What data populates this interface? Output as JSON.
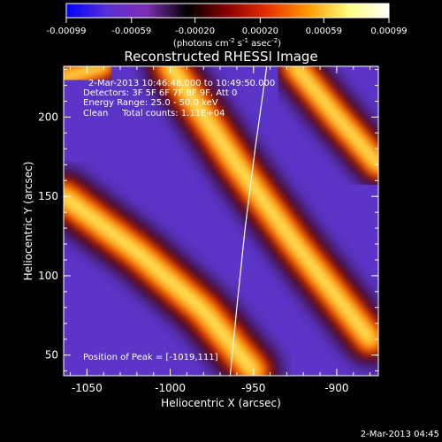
{
  "chart_data": {
    "type": "heatmap",
    "title": "Reconstructed RHESSI Image",
    "xlabel": "Heliocentric X (arcsec)",
    "ylabel": "Heliocentric Y (arcsec)",
    "xlim": [
      -1064,
      -875
    ],
    "ylim": [
      37,
      232
    ],
    "x_ticks": [
      "-1050",
      "-1000",
      "-950",
      "-900"
    ],
    "x_tick_values": [
      -1050,
      -1000,
      -950,
      -900
    ],
    "y_ticks": [
      "50",
      "100",
      "150",
      "200"
    ],
    "y_tick_values": [
      50,
      100,
      150,
      200
    ],
    "colorbar": {
      "min": -0.00099,
      "max": 0.00099,
      "ticks": [
        "-0.00099",
        "-0.00059",
        "-0.00020",
        "0.00020",
        "0.00059",
        "0.00099"
      ],
      "tick_values": [
        -0.00099,
        -0.00059,
        -0.0002,
        0.0002,
        0.00059,
        0.00099
      ],
      "unit_label": "(photons cm",
      "unit_sup1": "-2",
      "unit_mid": " s",
      "unit_sup2": "-1",
      "unit_end": " asec",
      "unit_sup3": "-2",
      "unit_close": ")",
      "colors": [
        "#0000ff",
        "#5a2fd6",
        "#7d2eb0",
        "#000000",
        "#8a0000",
        "#e83200",
        "#ff9a00",
        "#ffff80",
        "#ffffff"
      ]
    },
    "info_lines": [
      "2-Mar-2013 10:46:48.000 to 10:49:50.000",
      "Detectors: 3F 5F 6F 7F 8F 9F, Att 0",
      "Energy Range: 25.0 - 50.0 keV",
      "Clean     Total counts: 1.11E+04"
    ],
    "peak_label": "Position of Peak = [-1019,111]",
    "limb_points": [
      [
        -964,
        37
      ],
      [
        -960,
        80
      ],
      [
        -955,
        130
      ],
      [
        -949,
        180
      ],
      [
        -942,
        232
      ]
    ],
    "stripes": [
      {
        "kind": "bright",
        "points": [
          [
            -1064,
            150
          ],
          [
            -1020,
            115
          ],
          [
            -980,
            78
          ],
          [
            -950,
            40
          ]
        ],
        "intensity": 1.0
      },
      {
        "kind": "bright",
        "points": [
          [
            -1000,
            232
          ],
          [
            -960,
            170
          ],
          [
            -925,
            120
          ],
          [
            -880,
            60
          ]
        ],
        "intensity": 0.95
      },
      {
        "kind": "bright",
        "points": [
          [
            -1064,
            225
          ],
          [
            -1040,
            232
          ]
        ],
        "intensity": 0.7
      },
      {
        "kind": "bright",
        "points": [
          [
            -925,
            232
          ],
          [
            -900,
            200
          ],
          [
            -875,
            170
          ]
        ],
        "intensity": 0.85
      }
    ]
  },
  "footer": {
    "timestamp": "2-Mar-2013 04:45"
  }
}
